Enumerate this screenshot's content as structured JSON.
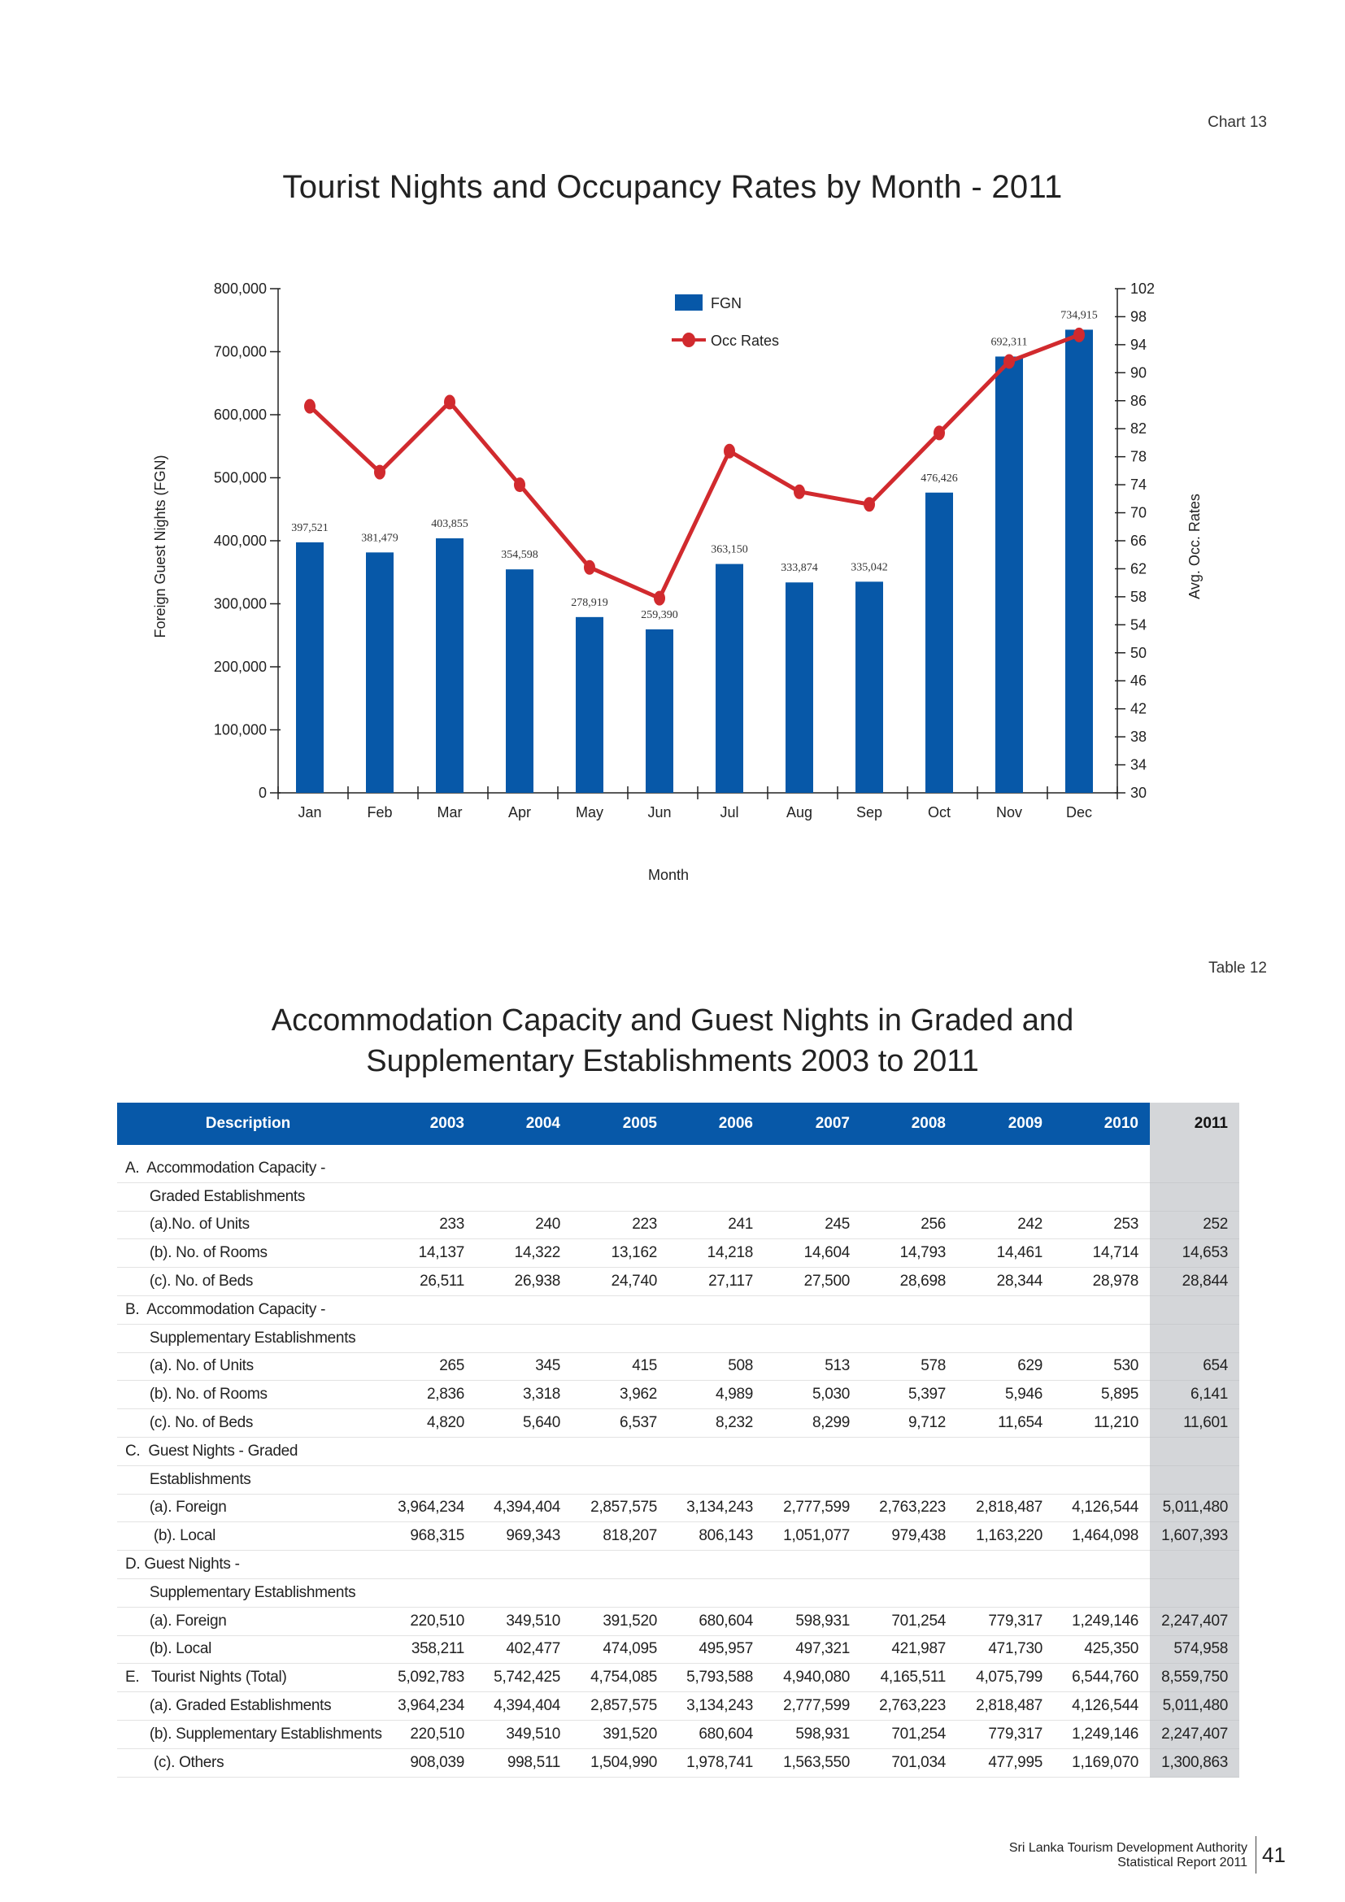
{
  "chart_label": "Chart 13",
  "chart_data": {
    "type": "bar",
    "title": "Tourist  Nights and Occupancy Rates by Month - 2011",
    "xlabel": "Month",
    "ylabel": "Foreign Guest Nights (FGN)",
    "y2label": "Avg. Occ. Rates",
    "categories": [
      "Jan",
      "Feb",
      "Mar",
      "Apr",
      "May",
      "Jun",
      "Jul",
      "Aug",
      "Sep",
      "Oct",
      "Nov",
      "Dec"
    ],
    "series": [
      {
        "name": "FGN",
        "type": "bar",
        "axis": "left",
        "color": "#0758a8",
        "values": [
          397521,
          381479,
          403855,
          354598,
          278919,
          259390,
          363150,
          333874,
          335042,
          476426,
          692311,
          734915
        ],
        "labels": [
          "397,521",
          "381,479",
          "403,855",
          "354,598",
          "278,919",
          "259,390",
          "363,150",
          "333,874",
          "335,042",
          "476,426",
          "692,311",
          "734,915"
        ]
      },
      {
        "name": "Occ Rates",
        "type": "line",
        "axis": "right",
        "color": "#d12a2e",
        "values": [
          85.2,
          75.8,
          85.8,
          74.0,
          62.2,
          57.8,
          78.8,
          73.0,
          71.2,
          81.4,
          91.6,
          95.4
        ]
      }
    ],
    "ylim": [
      0,
      800000
    ],
    "yticks": [
      "0",
      "100,000",
      "200,000",
      "300,000",
      "400,000",
      "500,000",
      "600,000",
      "700,000",
      "800,000"
    ],
    "y2lim": [
      30,
      102
    ],
    "y2ticks": [
      "30",
      "34",
      "38",
      "42",
      "46",
      "50",
      "54",
      "58",
      "62",
      "66",
      "70",
      "74",
      "78",
      "82",
      "86",
      "90",
      "94",
      "98",
      "102"
    ],
    "legend": "top-center",
    "grid": false
  },
  "table_label": "Table 12",
  "table_title_line1": "Accommodation Capacity and Guest Nights in Graded and",
  "table_title_line2": "Supplementary Establishments 2003 to 2011",
  "table": {
    "headers": [
      "Description",
      "2003",
      "2004",
      "2005",
      "2006",
      "2007",
      "2008",
      "2009",
      "2010",
      "2011"
    ],
    "rows": [
      [
        "A.  Accommodation Capacity -",
        "",
        "",
        "",
        "",
        "",
        "",
        "",
        "",
        ""
      ],
      [
        "      Graded Establishments",
        "",
        "",
        "",
        "",
        "",
        "",
        "",
        "",
        ""
      ],
      [
        "      (a).No. of Units",
        "233",
        "240",
        "223",
        "241",
        "245",
        "256",
        "242",
        "253",
        "252"
      ],
      [
        "      (b). No. of Rooms",
        "14,137",
        "14,322",
        "13,162",
        "14,218",
        "14,604",
        "14,793",
        "14,461",
        "14,714",
        "14,653"
      ],
      [
        "      (c). No. of Beds",
        "26,511",
        "26,938",
        "24,740",
        "27,117",
        "27,500",
        "28,698",
        "28,344",
        "28,978",
        "28,844"
      ],
      [
        "B.  Accommodation Capacity -",
        "",
        "",
        "",
        "",
        "",
        "",
        "",
        "",
        ""
      ],
      [
        "      Supplementary Establishments",
        "",
        "",
        "",
        "",
        "",
        "",
        "",
        "",
        ""
      ],
      [
        "      (a). No. of Units",
        "265",
        "345",
        "415",
        "508",
        "513",
        "578",
        "629",
        "530",
        "654"
      ],
      [
        "      (b). No. of Rooms",
        "2,836",
        "3,318",
        "3,962",
        "4,989",
        "5,030",
        "5,397",
        "5,946",
        "5,895",
        "6,141"
      ],
      [
        "      (c). No. of Beds",
        "4,820",
        "5,640",
        "6,537",
        "8,232",
        "8,299",
        "9,712",
        "11,654",
        "11,210",
        "11,601"
      ],
      [
        "C.  Guest Nights - Graded",
        "",
        "",
        "",
        "",
        "",
        "",
        "",
        "",
        ""
      ],
      [
        "      Establishments",
        "",
        "",
        "",
        "",
        "",
        "",
        "",
        "",
        ""
      ],
      [
        "      (a). Foreign",
        "3,964,234",
        "4,394,404",
        "2,857,575",
        "3,134,243",
        "2,777,599",
        "2,763,223",
        "2,818,487",
        "4,126,544",
        "5,011,480"
      ],
      [
        "       (b). Local",
        "968,315",
        "969,343",
        "818,207",
        "806,143",
        "1,051,077",
        "979,438",
        "1,163,220",
        "1,464,098",
        "1,607,393"
      ],
      [
        "D. Guest Nights -",
        "",
        "",
        "",
        "",
        "",
        "",
        "",
        "",
        ""
      ],
      [
        "      Supplementary Establishments",
        "",
        "",
        "",
        "",
        "",
        "",
        "",
        "",
        ""
      ],
      [
        "      (a). Foreign",
        "220,510",
        "349,510",
        "391,520",
        "680,604",
        "598,931",
        "701,254",
        "779,317",
        "1,249,146",
        "2,247,407"
      ],
      [
        "      (b). Local",
        "358,211",
        "402,477",
        "474,095",
        "495,957",
        "497,321",
        "421,987",
        "471,730",
        "425,350",
        "574,958"
      ],
      [
        "E.   Tourist Nights (Total)",
        "5,092,783",
        "5,742,425",
        "4,754,085",
        "5,793,588",
        "4,940,080",
        "4,165,511",
        "4,075,799",
        "6,544,760",
        "8,559,750"
      ],
      [
        "      (a). Graded Establishments",
        "3,964,234",
        "4,394,404",
        "2,857,575",
        "3,134,243",
        "2,777,599",
        "2,763,223",
        "2,818,487",
        "4,126,544",
        "5,011,480"
      ],
      [
        "      (b). Supplementary Establishments",
        "220,510",
        "349,510",
        "391,520",
        "680,604",
        "598,931",
        "701,254",
        "779,317",
        "1,249,146",
        "2,247,407"
      ],
      [
        "       (c). Others",
        "908,039",
        "998,511",
        "1,504,990",
        "1,978,741",
        "1,563,550",
        "701,034",
        "477,995",
        "1,169,070",
        "1,300,863"
      ]
    ]
  },
  "footer_line1": "Sri Lanka Tourism Development Authority",
  "footer_line2": "Statistical Report 2011",
  "page_number": "41"
}
